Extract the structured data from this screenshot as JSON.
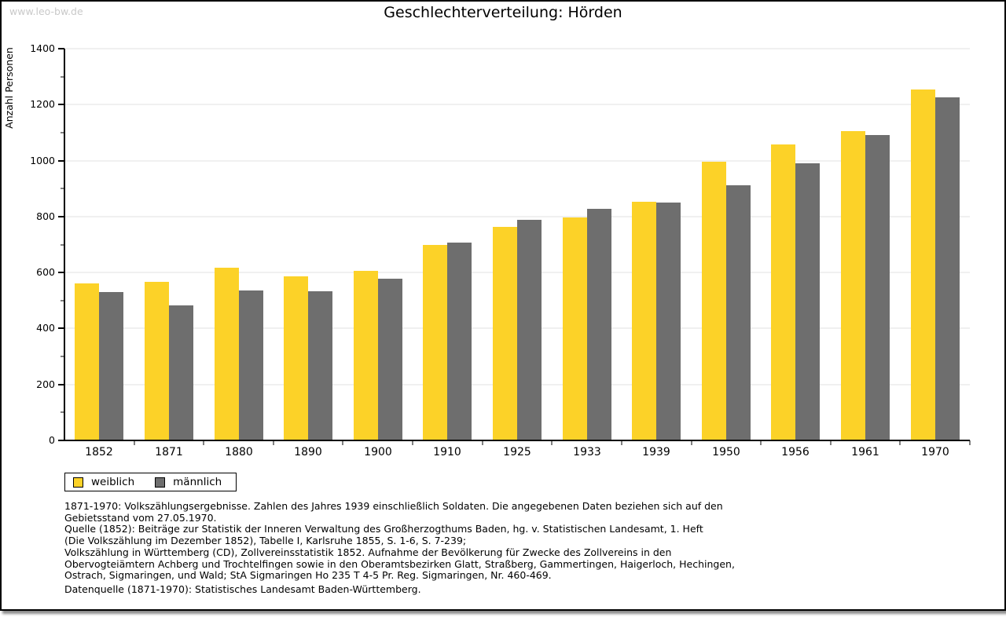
{
  "watermark": "www.leo-bw.de",
  "colors": {
    "grid": "#e0e0e0",
    "axis": "#000000",
    "watermark": "#c9c9c9",
    "background": "#ffffff"
  },
  "chart_data": {
    "type": "bar",
    "title": "Geschlechterverteilung: Hörden",
    "ylabel": "Anzahl Personen",
    "xlabel": "",
    "ylim": [
      0,
      1400
    ],
    "ytick_step": 200,
    "ytick_minor_step": 100,
    "grid": true,
    "legend_position": "bottom-left",
    "categories": [
      "1852",
      "1871",
      "1880",
      "1890",
      "1900",
      "1910",
      "1925",
      "1933",
      "1939",
      "1950",
      "1956",
      "1961",
      "1970"
    ],
    "series": [
      {
        "name": "weiblich",
        "color": "#fcd228",
        "values": [
          561,
          568,
          616,
          585,
          606,
          699,
          762,
          797,
          854,
          997,
          1058,
          1106,
          1254
        ]
      },
      {
        "name": "männlich",
        "color": "#6e6e6e",
        "values": [
          530,
          483,
          537,
          533,
          577,
          707,
          789,
          828,
          851,
          913,
          990,
          1090,
          1227
        ]
      }
    ]
  },
  "footer": {
    "note_lines": [
      "1871-1970: Volkszählungsergebnisse. Zahlen des Jahres 1939 einschließlich Soldaten. Die angegebenen Daten beziehen sich auf den",
      "Gebietsstand vom 27.05.1970.",
      "Quelle (1852): Beiträge zur Statistik der Inneren Verwaltung des Großherzogthums Baden, hg. v. Statistischen Landesamt, 1. Heft",
      "(Die Volkszählung im Dezember 1852), Tabelle I, Karlsruhe 1855, S. 1-6, S. 7-239;",
      "Volkszählung in Württemberg (CD), Zollvereinsstatistik 1852. Aufnahme der Bevölkerung für Zwecke des Zollvereins in den",
      "Obervogteiämtern Achberg und Trochtelfingen sowie in den Oberamtsbezirken Glatt, Straßberg, Gammertingen, Haigerloch, Hechingen,",
      "Ostrach, Sigmaringen, und Wald; StA Sigmaringen Ho 235 T 4-5 Pr. Reg. Sigmaringen, Nr. 460-469."
    ],
    "datasource": "Datenquelle (1871-1970): Statistisches Landesamt Baden-Württemberg."
  }
}
